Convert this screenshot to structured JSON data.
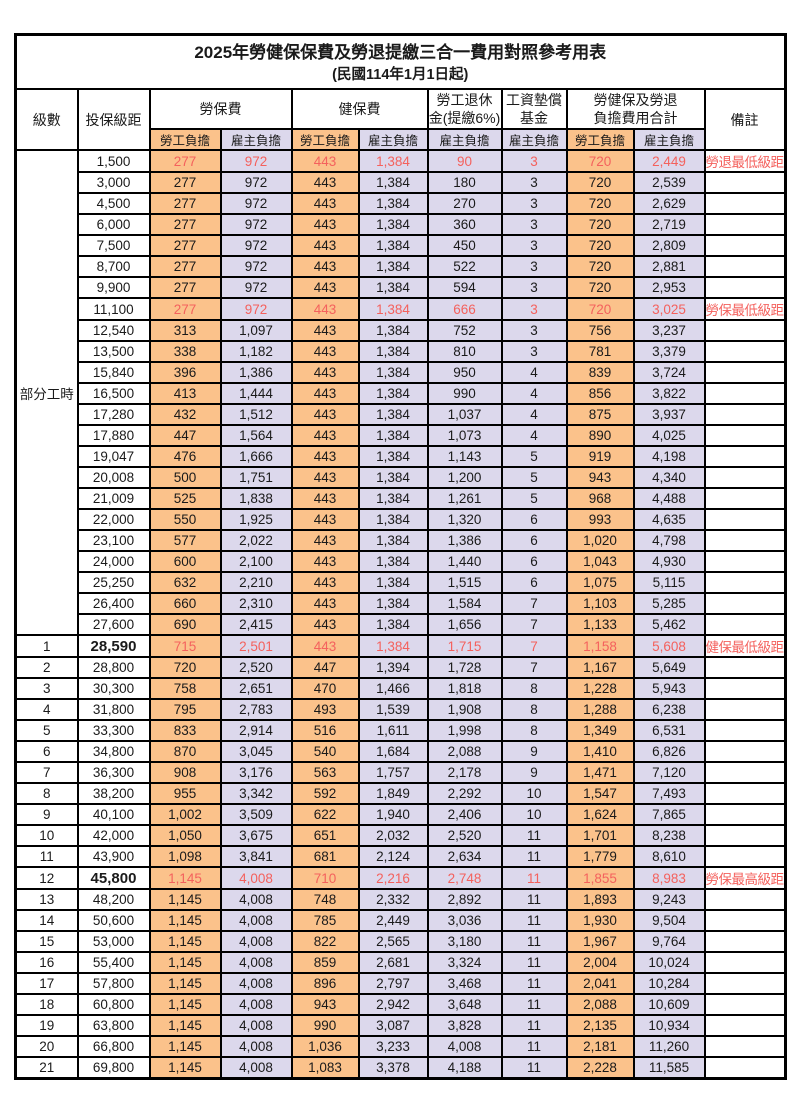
{
  "title": "2025年勞健保保費及勞退提繳三合一費用對照參考用表",
  "subtitle": "(民國114年1月1日起)",
  "colors": {
    "worker_col_bg": "#FBC28B",
    "employer_col_bg": "#DCD8EC",
    "highlight_red": "#F4615D",
    "border": "#000000"
  },
  "header": {
    "level": "級數",
    "bracket": "投保級距",
    "labor_insurance": "勞保費",
    "health_insurance": "健保費",
    "pension_line1": "勞工退休",
    "pension_line2": "金(提繳6%)",
    "wage_fund_line1": "工資墊償",
    "wage_fund_line2": "基金",
    "total_line1": "勞健保及勞退",
    "total_line2": "負擔費用合計",
    "remark": "備註",
    "worker": "勞工負擔",
    "employer": "雇主負擔"
  },
  "table": {
    "rows": [
      {
        "level": "部分工時",
        "span": 23,
        "bracket": "1,500",
        "values": [
          "277",
          "972",
          "443",
          "1,384",
          "90",
          "3",
          "720",
          "2,449"
        ],
        "remark": "勞退最低級距",
        "red": true
      },
      {
        "bracket": "3,000",
        "values": [
          "277",
          "972",
          "443",
          "1,384",
          "180",
          "3",
          "720",
          "2,539"
        ],
        "remark": ""
      },
      {
        "bracket": "4,500",
        "values": [
          "277",
          "972",
          "443",
          "1,384",
          "270",
          "3",
          "720",
          "2,629"
        ],
        "remark": ""
      },
      {
        "bracket": "6,000",
        "values": [
          "277",
          "972",
          "443",
          "1,384",
          "360",
          "3",
          "720",
          "2,719"
        ],
        "remark": ""
      },
      {
        "bracket": "7,500",
        "values": [
          "277",
          "972",
          "443",
          "1,384",
          "450",
          "3",
          "720",
          "2,809"
        ],
        "remark": ""
      },
      {
        "bracket": "8,700",
        "values": [
          "277",
          "972",
          "443",
          "1,384",
          "522",
          "3",
          "720",
          "2,881"
        ],
        "remark": ""
      },
      {
        "bracket": "9,900",
        "values": [
          "277",
          "972",
          "443",
          "1,384",
          "594",
          "3",
          "720",
          "2,953"
        ],
        "remark": ""
      },
      {
        "bracket": "11,100",
        "values": [
          "277",
          "972",
          "443",
          "1,384",
          "666",
          "3",
          "720",
          "3,025"
        ],
        "remark": "勞保最低級距",
        "red": true
      },
      {
        "bracket": "12,540",
        "values": [
          "313",
          "1,097",
          "443",
          "1,384",
          "752",
          "3",
          "756",
          "3,237"
        ],
        "remark": ""
      },
      {
        "bracket": "13,500",
        "values": [
          "338",
          "1,182",
          "443",
          "1,384",
          "810",
          "3",
          "781",
          "3,379"
        ],
        "remark": ""
      },
      {
        "bracket": "15,840",
        "values": [
          "396",
          "1,386",
          "443",
          "1,384",
          "950",
          "4",
          "839",
          "3,724"
        ],
        "remark": ""
      },
      {
        "bracket": "16,500",
        "values": [
          "413",
          "1,444",
          "443",
          "1,384",
          "990",
          "4",
          "856",
          "3,822"
        ],
        "remark": ""
      },
      {
        "bracket": "17,280",
        "values": [
          "432",
          "1,512",
          "443",
          "1,384",
          "1,037",
          "4",
          "875",
          "3,937"
        ],
        "remark": ""
      },
      {
        "bracket": "17,880",
        "values": [
          "447",
          "1,564",
          "443",
          "1,384",
          "1,073",
          "4",
          "890",
          "4,025"
        ],
        "remark": ""
      },
      {
        "bracket": "19,047",
        "values": [
          "476",
          "1,666",
          "443",
          "1,384",
          "1,143",
          "5",
          "919",
          "4,198"
        ],
        "remark": ""
      },
      {
        "bracket": "20,008",
        "values": [
          "500",
          "1,751",
          "443",
          "1,384",
          "1,200",
          "5",
          "943",
          "4,340"
        ],
        "remark": ""
      },
      {
        "bracket": "21,009",
        "values": [
          "525",
          "1,838",
          "443",
          "1,384",
          "1,261",
          "5",
          "968",
          "4,488"
        ],
        "remark": ""
      },
      {
        "bracket": "22,000",
        "values": [
          "550",
          "1,925",
          "443",
          "1,384",
          "1,320",
          "6",
          "993",
          "4,635"
        ],
        "remark": ""
      },
      {
        "bracket": "23,100",
        "values": [
          "577",
          "2,022",
          "443",
          "1,384",
          "1,386",
          "6",
          "1,020",
          "4,798"
        ],
        "remark": ""
      },
      {
        "bracket": "24,000",
        "values": [
          "600",
          "2,100",
          "443",
          "1,384",
          "1,440",
          "6",
          "1,043",
          "4,930"
        ],
        "remark": ""
      },
      {
        "bracket": "25,250",
        "values": [
          "632",
          "2,210",
          "443",
          "1,384",
          "1,515",
          "6",
          "1,075",
          "5,115"
        ],
        "remark": ""
      },
      {
        "bracket": "26,400",
        "values": [
          "660",
          "2,310",
          "443",
          "1,384",
          "1,584",
          "7",
          "1,103",
          "5,285"
        ],
        "remark": ""
      },
      {
        "bracket": "27,600",
        "values": [
          "690",
          "2,415",
          "443",
          "1,384",
          "1,656",
          "7",
          "1,133",
          "5,462"
        ],
        "remark": ""
      },
      {
        "level": "1",
        "bracket": "28,590",
        "values": [
          "715",
          "2,501",
          "443",
          "1,384",
          "1,715",
          "7",
          "1,158",
          "5,608"
        ],
        "remark": "健保最低級距",
        "red": true,
        "bold": true
      },
      {
        "level": "2",
        "bracket": "28,800",
        "values": [
          "720",
          "2,520",
          "447",
          "1,394",
          "1,728",
          "7",
          "1,167",
          "5,649"
        ],
        "remark": ""
      },
      {
        "level": "3",
        "bracket": "30,300",
        "values": [
          "758",
          "2,651",
          "470",
          "1,466",
          "1,818",
          "8",
          "1,228",
          "5,943"
        ],
        "remark": ""
      },
      {
        "level": "4",
        "bracket": "31,800",
        "values": [
          "795",
          "2,783",
          "493",
          "1,539",
          "1,908",
          "8",
          "1,288",
          "6,238"
        ],
        "remark": ""
      },
      {
        "level": "5",
        "bracket": "33,300",
        "values": [
          "833",
          "2,914",
          "516",
          "1,611",
          "1,998",
          "8",
          "1,349",
          "6,531"
        ],
        "remark": ""
      },
      {
        "level": "6",
        "bracket": "34,800",
        "values": [
          "870",
          "3,045",
          "540",
          "1,684",
          "2,088",
          "9",
          "1,410",
          "6,826"
        ],
        "remark": ""
      },
      {
        "level": "7",
        "bracket": "36,300",
        "values": [
          "908",
          "3,176",
          "563",
          "1,757",
          "2,178",
          "9",
          "1,471",
          "7,120"
        ],
        "remark": ""
      },
      {
        "level": "8",
        "bracket": "38,200",
        "values": [
          "955",
          "3,342",
          "592",
          "1,849",
          "2,292",
          "10",
          "1,547",
          "7,493"
        ],
        "remark": ""
      },
      {
        "level": "9",
        "bracket": "40,100",
        "values": [
          "1,002",
          "3,509",
          "622",
          "1,940",
          "2,406",
          "10",
          "1,624",
          "7,865"
        ],
        "remark": ""
      },
      {
        "level": "10",
        "bracket": "42,000",
        "values": [
          "1,050",
          "3,675",
          "651",
          "2,032",
          "2,520",
          "11",
          "1,701",
          "8,238"
        ],
        "remark": ""
      },
      {
        "level": "11",
        "bracket": "43,900",
        "values": [
          "1,098",
          "3,841",
          "681",
          "2,124",
          "2,634",
          "11",
          "1,779",
          "8,610"
        ],
        "remark": ""
      },
      {
        "level": "12",
        "bracket": "45,800",
        "values": [
          "1,145",
          "4,008",
          "710",
          "2,216",
          "2,748",
          "11",
          "1,855",
          "8,983"
        ],
        "remark": "勞保最高級距",
        "red": true,
        "bold": true
      },
      {
        "level": "13",
        "bracket": "48,200",
        "values": [
          "1,145",
          "4,008",
          "748",
          "2,332",
          "2,892",
          "11",
          "1,893",
          "9,243"
        ],
        "remark": ""
      },
      {
        "level": "14",
        "bracket": "50,600",
        "values": [
          "1,145",
          "4,008",
          "785",
          "2,449",
          "3,036",
          "11",
          "1,930",
          "9,504"
        ],
        "remark": ""
      },
      {
        "level": "15",
        "bracket": "53,000",
        "values": [
          "1,145",
          "4,008",
          "822",
          "2,565",
          "3,180",
          "11",
          "1,967",
          "9,764"
        ],
        "remark": ""
      },
      {
        "level": "16",
        "bracket": "55,400",
        "values": [
          "1,145",
          "4,008",
          "859",
          "2,681",
          "3,324",
          "11",
          "2,004",
          "10,024"
        ],
        "remark": ""
      },
      {
        "level": "17",
        "bracket": "57,800",
        "values": [
          "1,145",
          "4,008",
          "896",
          "2,797",
          "3,468",
          "11",
          "2,041",
          "10,284"
        ],
        "remark": ""
      },
      {
        "level": "18",
        "bracket": "60,800",
        "values": [
          "1,145",
          "4,008",
          "943",
          "2,942",
          "3,648",
          "11",
          "2,088",
          "10,609"
        ],
        "remark": ""
      },
      {
        "level": "19",
        "bracket": "63,800",
        "values": [
          "1,145",
          "4,008",
          "990",
          "3,087",
          "3,828",
          "11",
          "2,135",
          "10,934"
        ],
        "remark": ""
      },
      {
        "level": "20",
        "bracket": "66,800",
        "values": [
          "1,145",
          "4,008",
          "1,036",
          "3,233",
          "4,008",
          "11",
          "2,181",
          "11,260"
        ],
        "remark": ""
      },
      {
        "level": "21",
        "bracket": "69,800",
        "values": [
          "1,145",
          "4,008",
          "1,083",
          "3,378",
          "4,188",
          "11",
          "2,228",
          "11,585"
        ],
        "remark": ""
      }
    ]
  }
}
